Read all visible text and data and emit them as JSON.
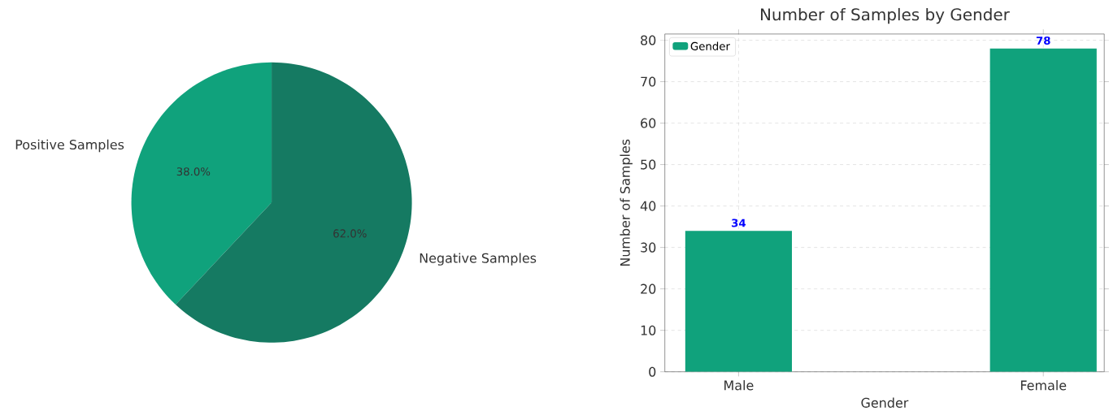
{
  "chart_data": [
    {
      "type": "pie",
      "categories": [
        "Positive Samples",
        "Negative Samples"
      ],
      "values": [
        38,
        62
      ],
      "colors": [
        "#10a27c",
        "#157a62"
      ],
      "value_labels": [
        "38.0%",
        "62.0%"
      ]
    },
    {
      "type": "bar",
      "title": "Number of Samples by Gender",
      "xlabel": "Gender",
      "ylabel": "Number of Samples",
      "categories": [
        "Male",
        "Female"
      ],
      "series": [
        {
          "name": "Gender",
          "color": "#10a27c",
          "values": [
            34,
            78
          ]
        }
      ],
      "ylim": [
        0,
        81.5
      ],
      "yticks": [
        0,
        10,
        20,
        30,
        40,
        50,
        60,
        70,
        80
      ],
      "grid": true,
      "legend": "top left",
      "data_labels": true
    }
  ]
}
